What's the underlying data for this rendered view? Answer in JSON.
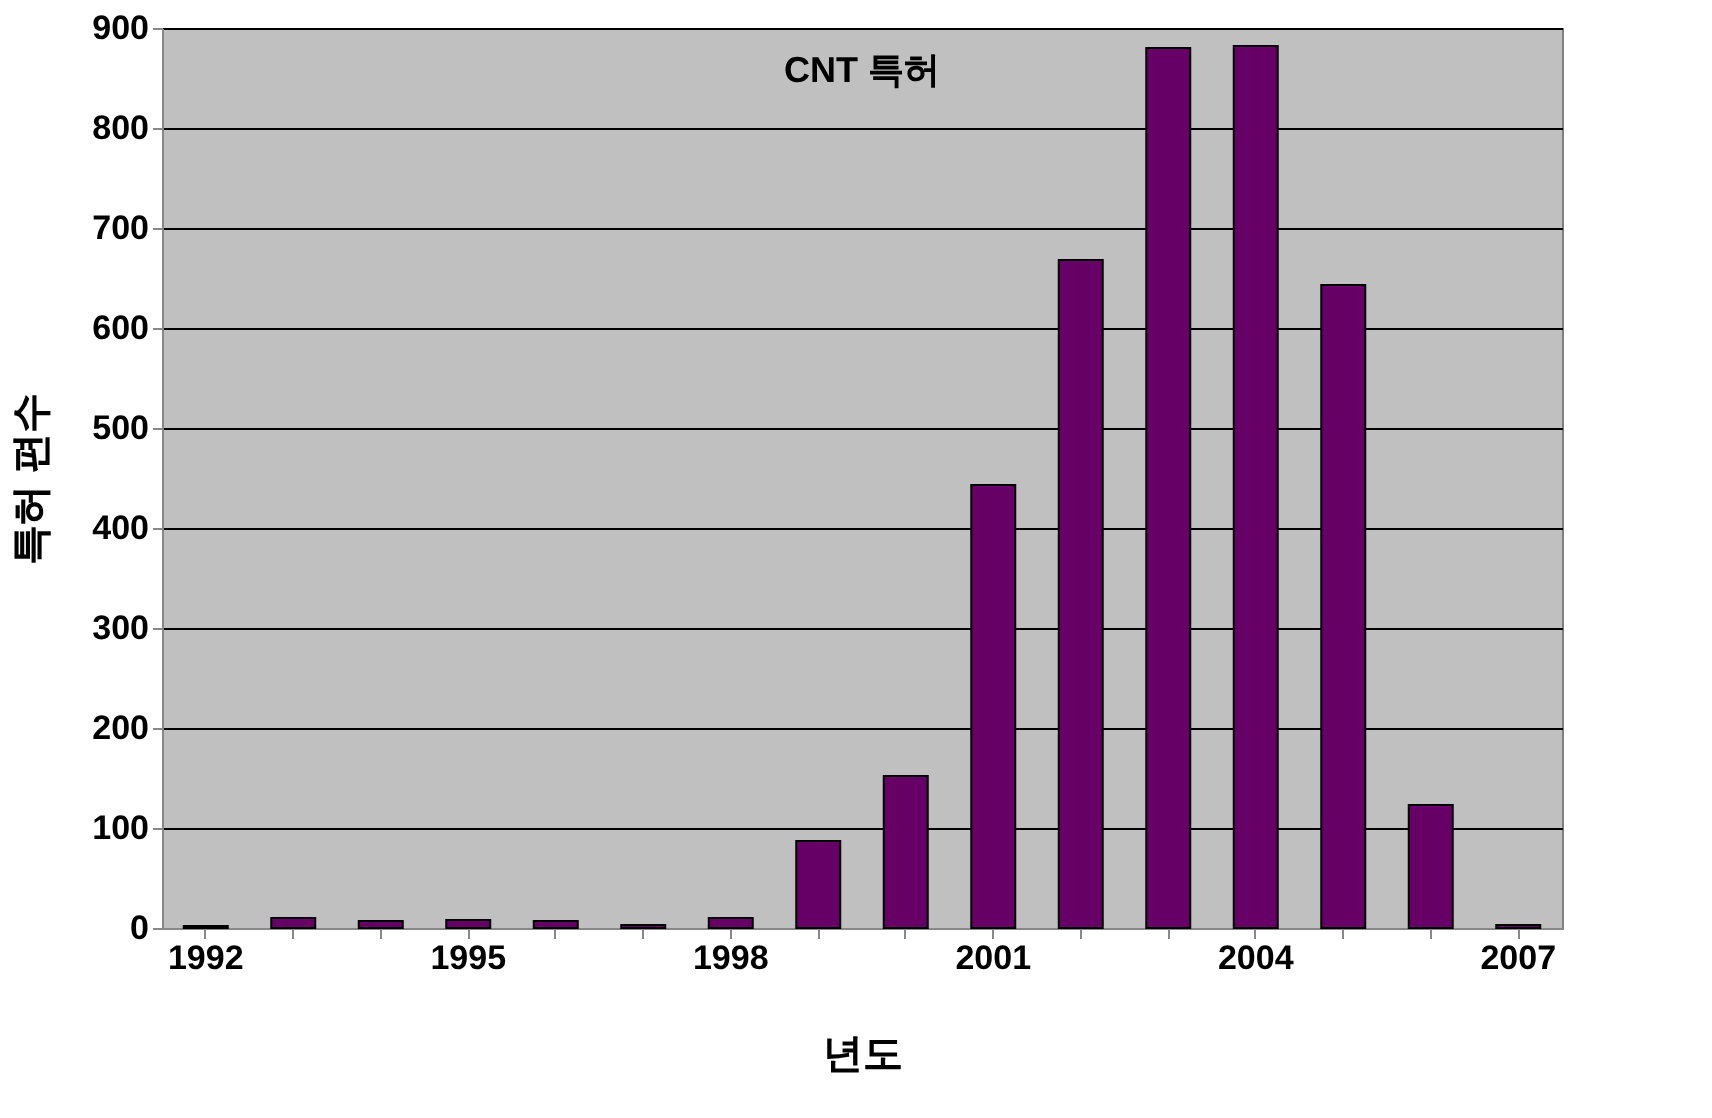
{
  "chart_data": {
    "type": "bar",
    "title": "CNT 특허",
    "xlabel": "년도",
    "ylabel": "특허 편수",
    "categories": [
      "1992",
      null,
      null,
      "1995",
      null,
      null,
      "1998",
      null,
      null,
      "2001",
      null,
      null,
      "2004",
      null,
      null,
      "2007"
    ],
    "values": [
      2,
      10,
      7,
      8,
      7,
      3,
      10,
      87,
      152,
      443,
      668,
      880,
      882,
      643,
      123,
      3
    ],
    "color": "#660066",
    "ylim": [
      0,
      900
    ],
    "yticks": [
      0,
      100,
      200,
      300,
      400,
      500,
      600,
      700,
      800,
      900
    ],
    "grid": "y"
  }
}
